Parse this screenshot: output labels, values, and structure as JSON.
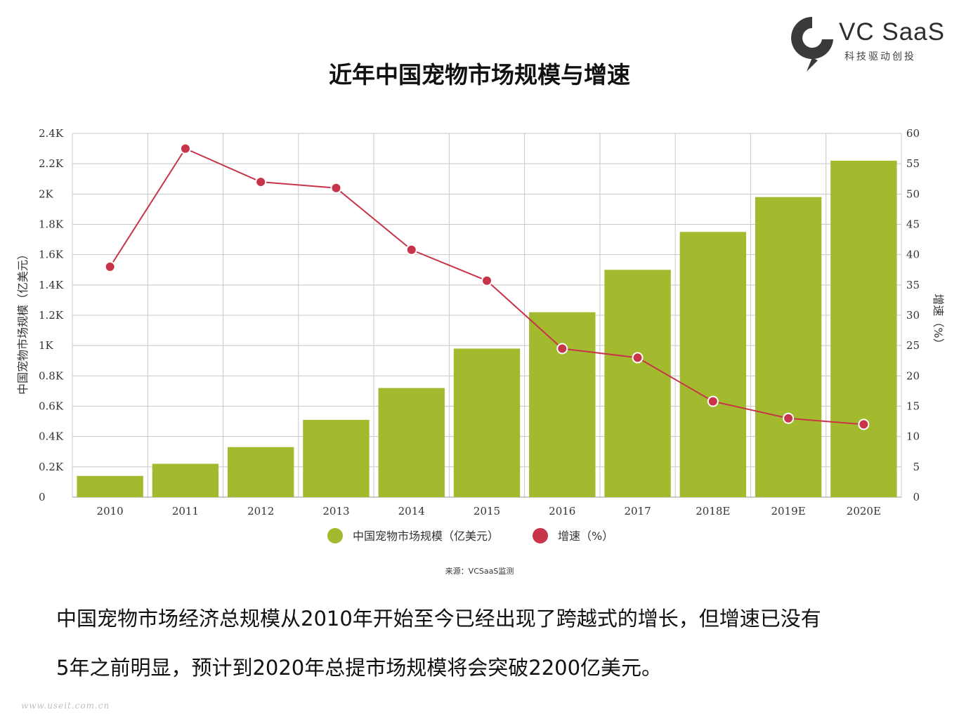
{
  "logo": {
    "name": "VC SaaS",
    "slogan": "科技驱动创投"
  },
  "title": "近年中国宠物市场规模与增速",
  "source": "来源：VCSaaS监测",
  "description": [
    "中国宠物市场经济总规模从2010年开始至今已经出现了跨越式的增长，但增速已没有",
    "5年之前明显，预计到2020年总提市场规模将会突破2200亿美元。"
  ],
  "watermark": "www.useit.com.cn",
  "colors": {
    "bar": "#a3b92e",
    "line": "#c8354a",
    "grid": "#c8c8c8",
    "axis_text": "#333333"
  },
  "chart_data": {
    "type": "bar",
    "categories": [
      "2010",
      "2011",
      "2012",
      "2013",
      "2014",
      "2015",
      "2016",
      "2017",
      "2018E",
      "2019E",
      "2020E"
    ],
    "series": [
      {
        "name": "中国宠物市场规模（亿美元）",
        "type": "bar",
        "axis": "left",
        "values": [
          140,
          220,
          330,
          510,
          720,
          980,
          1220,
          1500,
          1750,
          1980,
          2220
        ]
      },
      {
        "name": "增速（%）",
        "type": "line",
        "axis": "right",
        "values": [
          38,
          57.5,
          52,
          51,
          40.8,
          35.7,
          24.5,
          23,
          15.8,
          13,
          12
        ]
      }
    ],
    "ylabel": "中国宠物市场规模（亿美元）",
    "y2label": "增速（%）",
    "ylim": [
      0,
      2400
    ],
    "y2lim": [
      0,
      60
    ],
    "y_ticks": [
      0,
      200,
      400,
      600,
      800,
      1000,
      1200,
      1400,
      1600,
      1800,
      2000,
      2200,
      2400
    ],
    "y_tick_labels": [
      "0",
      "0.2K",
      "0.4K",
      "0.6K",
      "0.8K",
      "1K",
      "1.2K",
      "1.4K",
      "1.6K",
      "1.8K",
      "2K",
      "2.2K",
      "2.4K"
    ],
    "y2_ticks": [
      0,
      5,
      10,
      15,
      20,
      25,
      30,
      35,
      40,
      45,
      50,
      55,
      60
    ],
    "y2_tick_labels": [
      "0",
      "5",
      "10",
      "15",
      "20",
      "25",
      "30",
      "35",
      "40",
      "45",
      "50",
      "55",
      "60"
    ],
    "grid": true,
    "legend": "bottom-center"
  }
}
